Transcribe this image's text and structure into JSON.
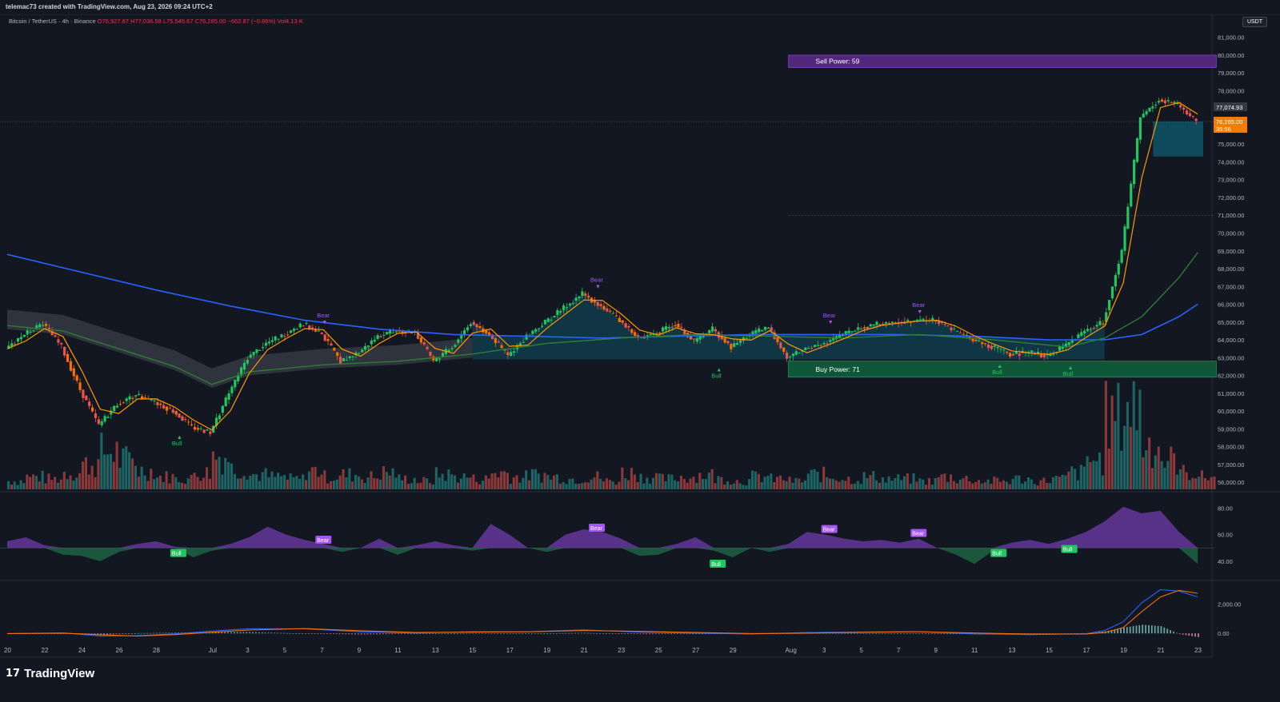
{
  "header": {
    "credit": "telemac73 created with TradingView.com, Aug 23, 2026 09:24 UTC+2",
    "symbol": "Bitcoin / TetherUS · 4h · Binance",
    "open": "O76,927.87",
    "high": "H77,036.58",
    "low": "L75,545.67",
    "close": "C76,265.00",
    "change": "−662.87 (−0.86%)",
    "volume": "Vol4.13 K",
    "currency": "USDT"
  },
  "footer": {
    "brand": "TradingView",
    "brand_icon": "tradingview-logo-icon"
  },
  "colors": {
    "background": "#131722",
    "up": "#26a69a",
    "down": "#ef5350",
    "bull_green": "#22c55e",
    "bear_purple": "#a855f7",
    "ma_blue": "#2962ff",
    "ma_green": "#2e7d32",
    "cloud_teal": "#0e4f63",
    "price_tag": "#f57c00"
  },
  "chart_data": [
    {
      "type": "line",
      "title": "Bitcoin / TetherUS · 4h · Binance",
      "x_ticks": [
        "20",
        "22",
        "24",
        "26",
        "28",
        "Jul",
        "3",
        "5",
        "7",
        "9",
        "11",
        "13",
        "15",
        "17",
        "19",
        "21",
        "23",
        "25",
        "27",
        "29",
        "Aug",
        "3",
        "5",
        "7",
        "9",
        "11",
        "13",
        "15",
        "17",
        "19",
        "21",
        "23"
      ],
      "x_days": [
        0,
        2,
        4,
        6,
        8,
        11,
        13,
        15,
        17,
        19,
        21,
        23,
        25,
        27,
        29,
        31,
        33,
        35,
        37,
        39,
        42,
        44,
        46,
        48,
        50,
        52,
        54,
        56,
        58,
        60,
        62,
        64
      ],
      "y_ticks": [
        {
          "label": "81,000.00",
          "value": 81000
        },
        {
          "label": "80,000.00",
          "value": 80000
        },
        {
          "label": "79,000.00",
          "value": 79000
        },
        {
          "label": "78,000.00",
          "value": 78000
        },
        {
          "label": "77,000.00",
          "value": 77000
        },
        {
          "label": "76,000.00",
          "value": 76000
        },
        {
          "label": "75,000.00",
          "value": 75000
        },
        {
          "label": "74,000.00",
          "value": 74000
        },
        {
          "label": "73,000.00",
          "value": 73000
        },
        {
          "label": "72,000.00",
          "value": 72000
        },
        {
          "label": "71,000.00",
          "value": 71000
        },
        {
          "label": "70,000.00",
          "value": 70000
        },
        {
          "label": "69,000.00",
          "value": 69000
        },
        {
          "label": "68,000.00",
          "value": 68000
        },
        {
          "label": "67,000.00",
          "value": 67000
        },
        {
          "label": "66,000.00",
          "value": 66000
        },
        {
          "label": "65,000.00",
          "value": 65000
        },
        {
          "label": "64,000.00",
          "value": 64000
        },
        {
          "label": "63,000.00",
          "value": 63000
        },
        {
          "label": "62,000.00",
          "value": 62000
        },
        {
          "label": "61,000.00",
          "value": 61000
        },
        {
          "label": "60,000.00",
          "value": 60000
        },
        {
          "label": "59,000.00",
          "value": 59000
        },
        {
          "label": "58,000.00",
          "value": 58000
        },
        {
          "label": "57,000.00",
          "value": 57000
        },
        {
          "label": "56,000.00",
          "value": 56000
        }
      ],
      "ylim": [
        55600,
        81300
      ],
      "series": [
        {
          "kind": "price_close",
          "points": [
            [
              0,
              63500
            ],
            [
              1,
              64300
            ],
            [
              2,
              64900
            ],
            [
              3,
              63600
            ],
            [
              4,
              61200
            ],
            [
              5,
              59200
            ],
            [
              6,
              60400
            ],
            [
              7,
              60900
            ],
            [
              8,
              60500
            ],
            [
              9,
              60000
            ],
            [
              10,
              59100
            ],
            [
              11,
              58800
            ],
            [
              12,
              61000
            ],
            [
              13,
              63000
            ],
            [
              14,
              63800
            ],
            [
              15,
              64300
            ],
            [
              16,
              64900
            ],
            [
              17,
              64300
            ],
            [
              18,
              62800
            ],
            [
              19,
              63300
            ],
            [
              20,
              64200
            ],
            [
              21,
              64500
            ],
            [
              22,
              64400
            ],
            [
              23,
              62800
            ],
            [
              24,
              63600
            ],
            [
              25,
              65000
            ],
            [
              26,
              64300
            ],
            [
              27,
              63100
            ],
            [
              28,
              64200
            ],
            [
              29,
              65000
            ],
            [
              30,
              65800
            ],
            [
              31,
              66600
            ],
            [
              32,
              65900
            ],
            [
              33,
              65100
            ],
            [
              34,
              64100
            ],
            [
              35,
              64400
            ],
            [
              36,
              64900
            ],
            [
              37,
              63900
            ],
            [
              38,
              64600
            ],
            [
              39,
              63600
            ],
            [
              40,
              64300
            ],
            [
              41,
              64700
            ],
            [
              42,
              63000
            ],
            [
              43,
              63500
            ],
            [
              44,
              63800
            ],
            [
              45,
              64300
            ],
            [
              46,
              64700
            ],
            [
              47,
              64900
            ],
            [
              48,
              65000
            ],
            [
              49,
              65100
            ],
            [
              50,
              65100
            ],
            [
              51,
              64500
            ],
            [
              52,
              64000
            ],
            [
              53,
              63600
            ],
            [
              54,
              63200
            ],
            [
              55,
              63300
            ],
            [
              56,
              63100
            ],
            [
              57,
              63700
            ],
            [
              58,
              64500
            ],
            [
              59,
              65000
            ],
            [
              60,
              69000
            ],
            [
              61,
              76500
            ],
            [
              62,
              77500
            ],
            [
              63,
              77200
            ],
            [
              64,
              76265
            ]
          ]
        },
        {
          "kind": "ma_green",
          "points": [
            [
              0,
              64800
            ],
            [
              3,
              64500
            ],
            [
              6,
              63500
            ],
            [
              9,
              62500
            ],
            [
              11,
              61500
            ],
            [
              13,
              62200
            ],
            [
              17,
              62600
            ],
            [
              21,
              62800
            ],
            [
              25,
              63200
            ],
            [
              29,
              63800
            ],
            [
              33,
              64100
            ],
            [
              37,
              64300
            ],
            [
              41,
              64200
            ],
            [
              45,
              64100
            ],
            [
              49,
              64300
            ],
            [
              53,
              64000
            ],
            [
              57,
              63600
            ],
            [
              59,
              64100
            ],
            [
              61,
              65300
            ],
            [
              63,
              67500
            ],
            [
              64,
              68900
            ]
          ]
        },
        {
          "kind": "ma_blue",
          "points": [
            [
              0,
              68800
            ],
            [
              4,
              67800
            ],
            [
              8,
              66800
            ],
            [
              12,
              65900
            ],
            [
              16,
              65100
            ],
            [
              20,
              64600
            ],
            [
              24,
              64300
            ],
            [
              28,
              64200
            ],
            [
              32,
              64100
            ],
            [
              36,
              64200
            ],
            [
              40,
              64300
            ],
            [
              44,
              64300
            ],
            [
              48,
              64300
            ],
            [
              52,
              64200
            ],
            [
              56,
              64000
            ],
            [
              59,
              64000
            ],
            [
              61,
              64300
            ],
            [
              63,
              65300
            ],
            [
              64,
              66000
            ]
          ]
        }
      ],
      "annotations": [
        {
          "text": "Sell Power: 59",
          "x_from": 42,
          "x_to": 65,
          "y_from": 79300,
          "y_to": 80000
        },
        {
          "text": "Buy Power: 71",
          "x_from": 42,
          "x_to": 65,
          "y_from": 61900,
          "y_to": 62800
        },
        {
          "text": "Bear",
          "x": 17,
          "y": 64800
        },
        {
          "text": "Bear",
          "x": 31.7,
          "y": 66800
        },
        {
          "text": "Bear",
          "x": 44.2,
          "y": 64800
        },
        {
          "text": "Bear",
          "x": 49,
          "y": 65400
        },
        {
          "text": "Bull",
          "x": 9.2,
          "y": 58700
        },
        {
          "text": "Bull",
          "x": 38.2,
          "y": 62500
        },
        {
          "text": "Bull",
          "x": 53.3,
          "y": 62700
        },
        {
          "text": "Bull",
          "x": 57.1,
          "y": 62600
        }
      ],
      "price_labels": [
        {
          "label": "77,074.93",
          "value": 77074.93
        },
        {
          "label": "76,265.00",
          "value": 76265
        },
        {
          "label": "35:56"
        }
      ]
    },
    {
      "type": "bar",
      "title": "",
      "series": [
        {
          "values": [
            4,
            6,
            5,
            8,
            12,
            18,
            14,
            9,
            6,
            5,
            8,
            16,
            10,
            7,
            6,
            5,
            9,
            6,
            7,
            6,
            8,
            5,
            4,
            7,
            6,
            5,
            8,
            6,
            7,
            6,
            5,
            6,
            4,
            8,
            6,
            5,
            6,
            7,
            5,
            4,
            6,
            5,
            4,
            7,
            6,
            5,
            6,
            5,
            5,
            4,
            6,
            5,
            4,
            4,
            5,
            4,
            5,
            8,
            14,
            34,
            40,
            22,
            14,
            8,
            6
          ]
        }
      ]
    },
    {
      "type": "area",
      "title": "",
      "y_ticks": [
        {
          "label": "80.00",
          "value": 80
        },
        {
          "label": "60.00",
          "value": 60
        },
        {
          "label": "40.00",
          "value": 40
        }
      ],
      "ylim": [
        28,
        88
      ],
      "baseline": 50,
      "values": [
        55,
        58,
        52,
        45,
        44,
        40,
        47,
        53,
        55,
        51,
        43,
        48,
        53,
        58,
        66,
        60,
        56,
        53,
        47,
        50,
        57,
        45,
        52,
        55,
        52,
        48,
        68,
        60,
        50,
        47,
        60,
        64,
        62,
        57,
        44,
        45,
        53,
        58,
        48,
        43,
        50,
        47,
        53,
        62,
        60,
        57,
        55,
        56,
        54,
        57,
        50,
        45,
        38,
        48,
        54,
        56,
        53,
        57,
        62,
        70,
        81,
        76,
        78,
        62,
        38
      ],
      "annotations": [
        {
          "text": "Bear",
          "x": 17,
          "y": 55
        },
        {
          "text": "Bear",
          "x": 31.7,
          "y": 64
        },
        {
          "text": "Bear",
          "x": 44.2,
          "y": 63
        },
        {
          "text": "Bear",
          "x": 49,
          "y": 60
        },
        {
          "text": "Bull",
          "x": 9.2,
          "y": 45
        },
        {
          "text": "Bull",
          "x": 38.2,
          "y": 37
        },
        {
          "text": "Bull",
          "x": 53.3,
          "y": 45
        },
        {
          "text": "Bull",
          "x": 57.1,
          "y": 48
        }
      ]
    },
    {
      "type": "line",
      "title": "",
      "y_ticks": [
        {
          "label": "2,000.00",
          "value": 2000
        },
        {
          "label": "0.00",
          "value": 0
        }
      ],
      "ylim": [
        -700,
        3300
      ],
      "series": [
        {
          "kind": "macd",
          "points": [
            [
              0,
              -20
            ],
            [
              3,
              40
            ],
            [
              5,
              -180
            ],
            [
              7,
              -160
            ],
            [
              9,
              -30
            ],
            [
              11,
              160
            ],
            [
              13,
              320
            ],
            [
              16,
              320
            ],
            [
              19,
              110
            ],
            [
              22,
              30
            ],
            [
              25,
              120
            ],
            [
              28,
              110
            ],
            [
              31,
              240
            ],
            [
              34,
              90
            ],
            [
              37,
              30
            ],
            [
              40,
              -40
            ],
            [
              43,
              60
            ],
            [
              46,
              100
            ],
            [
              49,
              120
            ],
            [
              52,
              -30
            ],
            [
              55,
              -80
            ],
            [
              58,
              -20
            ],
            [
              59,
              200
            ],
            [
              60,
              800
            ],
            [
              61,
              2100
            ],
            [
              62,
              3000
            ],
            [
              63,
              2900
            ],
            [
              64,
              2500
            ]
          ]
        },
        {
          "kind": "signal",
          "points": [
            [
              0,
              -10
            ],
            [
              3,
              20
            ],
            [
              5,
              -90
            ],
            [
              7,
              -180
            ],
            [
              9,
              -80
            ],
            [
              11,
              80
            ],
            [
              13,
              230
            ],
            [
              16,
              330
            ],
            [
              19,
              180
            ],
            [
              22,
              60
            ],
            [
              25,
              90
            ],
            [
              28,
              110
            ],
            [
              31,
              200
            ],
            [
              34,
              140
            ],
            [
              37,
              60
            ],
            [
              40,
              -10
            ],
            [
              43,
              20
            ],
            [
              46,
              80
            ],
            [
              49,
              110
            ],
            [
              52,
              30
            ],
            [
              55,
              -50
            ],
            [
              58,
              -40
            ],
            [
              59,
              60
            ],
            [
              60,
              400
            ],
            [
              61,
              1500
            ],
            [
              62,
              2500
            ],
            [
              63,
              2950
            ],
            [
              64,
              2750
            ]
          ]
        }
      ]
    }
  ]
}
